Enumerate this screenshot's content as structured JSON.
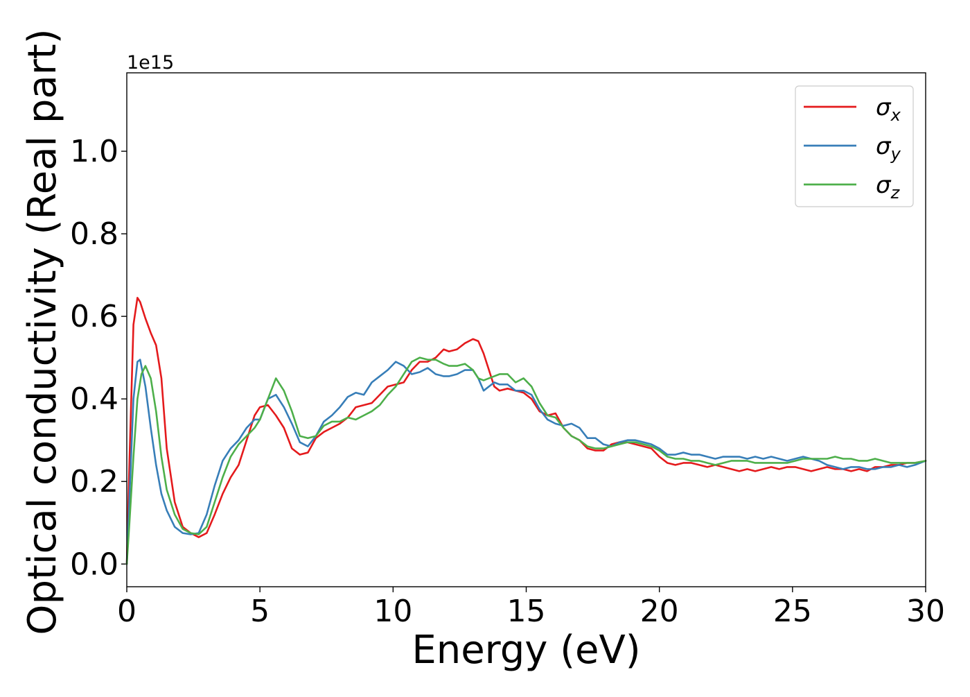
{
  "chart_data": {
    "type": "line",
    "xlabel": "Energy (eV)",
    "ylabel": "Optical conductivity (Real part)",
    "y_offset_label": "1e15",
    "xlim": [
      0,
      30
    ],
    "ylim": [
      -0.055,
      1.19
    ],
    "x_ticks": [
      0,
      5,
      10,
      15,
      20,
      25,
      30
    ],
    "y_ticks": [
      0.0,
      0.2,
      0.4,
      0.6,
      0.8,
      1.0
    ],
    "x_tick_labels": [
      "0",
      "5",
      "10",
      "15",
      "20",
      "25",
      "30"
    ],
    "y_tick_labels": [
      "0.0",
      "0.2",
      "0.4",
      "0.6",
      "0.8",
      "1.0"
    ],
    "grid": false,
    "legend_position": "top-right",
    "series": [
      {
        "name": "σ",
        "subscript": "x",
        "color": "#e41a1c",
        "x": [
          0,
          0.1,
          0.25,
          0.4,
          0.5,
          0.7,
          0.9,
          1.1,
          1.3,
          1.5,
          1.8,
          2.1,
          2.4,
          2.7,
          3.0,
          3.3,
          3.6,
          3.9,
          4.2,
          4.5,
          4.8,
          5.0,
          5.3,
          5.6,
          5.9,
          6.2,
          6.5,
          6.8,
          7.1,
          7.4,
          7.7,
          8.0,
          8.3,
          8.6,
          8.9,
          9.2,
          9.5,
          9.8,
          10.1,
          10.4,
          10.7,
          11.0,
          11.3,
          11.6,
          11.9,
          12.1,
          12.4,
          12.7,
          13.0,
          13.2,
          13.4,
          13.6,
          13.8,
          14.0,
          14.3,
          14.6,
          14.9,
          15.2,
          15.5,
          15.8,
          16.1,
          16.4,
          16.7,
          17.0,
          17.3,
          17.6,
          17.9,
          18.2,
          18.5,
          18.8,
          19.1,
          19.4,
          19.7,
          20.0,
          20.3,
          20.6,
          20.9,
          21.2,
          21.5,
          21.8,
          22.1,
          22.4,
          22.7,
          23.0,
          23.3,
          23.6,
          23.9,
          24.2,
          24.5,
          24.8,
          25.1,
          25.4,
          25.7,
          26.0,
          26.3,
          26.6,
          26.9,
          27.2,
          27.5,
          27.8,
          28.1,
          28.4,
          28.7,
          29.0,
          29.3,
          29.6,
          30.0
        ],
        "y": [
          0.0,
          0.25,
          0.58,
          0.645,
          0.635,
          0.595,
          0.56,
          0.53,
          0.45,
          0.28,
          0.15,
          0.09,
          0.075,
          0.065,
          0.075,
          0.12,
          0.17,
          0.21,
          0.24,
          0.3,
          0.36,
          0.38,
          0.385,
          0.36,
          0.33,
          0.28,
          0.265,
          0.27,
          0.305,
          0.32,
          0.33,
          0.34,
          0.355,
          0.38,
          0.385,
          0.39,
          0.41,
          0.43,
          0.435,
          0.44,
          0.47,
          0.49,
          0.49,
          0.5,
          0.52,
          0.515,
          0.52,
          0.535,
          0.545,
          0.54,
          0.51,
          0.47,
          0.43,
          0.42,
          0.425,
          0.42,
          0.415,
          0.4,
          0.37,
          0.36,
          0.365,
          0.33,
          0.31,
          0.3,
          0.28,
          0.275,
          0.275,
          0.29,
          0.295,
          0.295,
          0.29,
          0.285,
          0.28,
          0.26,
          0.245,
          0.24,
          0.245,
          0.245,
          0.24,
          0.235,
          0.24,
          0.235,
          0.23,
          0.225,
          0.23,
          0.225,
          0.23,
          0.235,
          0.23,
          0.235,
          0.235,
          0.23,
          0.225,
          0.23,
          0.235,
          0.23,
          0.23,
          0.225,
          0.23,
          0.225,
          0.235,
          0.235,
          0.24,
          0.24,
          0.245,
          0.245,
          0.25
        ]
      },
      {
        "name": "σ",
        "subscript": "y",
        "color": "#377eb8",
        "x": [
          0,
          0.1,
          0.25,
          0.4,
          0.5,
          0.7,
          0.9,
          1.1,
          1.3,
          1.5,
          1.8,
          2.1,
          2.4,
          2.7,
          3.0,
          3.3,
          3.6,
          3.9,
          4.2,
          4.5,
          4.8,
          5.0,
          5.3,
          5.6,
          5.9,
          6.2,
          6.5,
          6.8,
          7.1,
          7.4,
          7.7,
          8.0,
          8.3,
          8.6,
          8.9,
          9.2,
          9.5,
          9.8,
          10.1,
          10.4,
          10.7,
          11.0,
          11.3,
          11.6,
          11.9,
          12.1,
          12.4,
          12.7,
          13.0,
          13.2,
          13.4,
          13.6,
          13.8,
          14.0,
          14.3,
          14.6,
          14.9,
          15.2,
          15.5,
          15.8,
          16.1,
          16.4,
          16.7,
          17.0,
          17.3,
          17.6,
          17.9,
          18.2,
          18.5,
          18.8,
          19.1,
          19.4,
          19.7,
          20.0,
          20.3,
          20.6,
          20.9,
          21.2,
          21.5,
          21.8,
          22.1,
          22.4,
          22.7,
          23.0,
          23.3,
          23.6,
          23.9,
          24.2,
          24.5,
          24.8,
          25.1,
          25.4,
          25.7,
          26.0,
          26.3,
          26.6,
          26.9,
          27.2,
          27.5,
          27.8,
          28.1,
          28.4,
          28.7,
          29.0,
          29.3,
          29.6,
          30.0
        ],
        "y": [
          0.0,
          0.16,
          0.4,
          0.49,
          0.495,
          0.43,
          0.33,
          0.24,
          0.17,
          0.13,
          0.09,
          0.075,
          0.072,
          0.075,
          0.12,
          0.19,
          0.25,
          0.28,
          0.3,
          0.33,
          0.35,
          0.35,
          0.4,
          0.41,
          0.38,
          0.34,
          0.295,
          0.285,
          0.31,
          0.345,
          0.36,
          0.38,
          0.405,
          0.415,
          0.41,
          0.44,
          0.455,
          0.47,
          0.49,
          0.48,
          0.46,
          0.465,
          0.475,
          0.46,
          0.455,
          0.455,
          0.46,
          0.47,
          0.47,
          0.45,
          0.42,
          0.43,
          0.44,
          0.435,
          0.435,
          0.42,
          0.42,
          0.41,
          0.375,
          0.35,
          0.34,
          0.335,
          0.34,
          0.33,
          0.305,
          0.305,
          0.29,
          0.285,
          0.295,
          0.3,
          0.3,
          0.295,
          0.29,
          0.28,
          0.265,
          0.265,
          0.27,
          0.265,
          0.265,
          0.26,
          0.255,
          0.26,
          0.26,
          0.26,
          0.255,
          0.26,
          0.255,
          0.26,
          0.255,
          0.25,
          0.255,
          0.26,
          0.255,
          0.25,
          0.24,
          0.235,
          0.23,
          0.235,
          0.235,
          0.23,
          0.23,
          0.235,
          0.235,
          0.24,
          0.235,
          0.24,
          0.25
        ]
      },
      {
        "name": "σ",
        "subscript": "z",
        "color": "#4daf4a",
        "x": [
          0,
          0.1,
          0.25,
          0.4,
          0.55,
          0.7,
          0.9,
          1.1,
          1.3,
          1.5,
          1.8,
          2.1,
          2.4,
          2.7,
          3.0,
          3.3,
          3.6,
          3.9,
          4.2,
          4.5,
          4.8,
          5.0,
          5.3,
          5.6,
          5.9,
          6.2,
          6.5,
          6.8,
          7.1,
          7.4,
          7.7,
          8.0,
          8.3,
          8.6,
          8.9,
          9.2,
          9.5,
          9.8,
          10.1,
          10.4,
          10.7,
          11.0,
          11.3,
          11.6,
          11.9,
          12.1,
          12.4,
          12.7,
          13.0,
          13.2,
          13.4,
          13.6,
          13.8,
          14.0,
          14.3,
          14.6,
          14.9,
          15.2,
          15.5,
          15.8,
          16.1,
          16.4,
          16.7,
          17.0,
          17.3,
          17.6,
          17.9,
          18.2,
          18.5,
          18.8,
          19.1,
          19.4,
          19.7,
          20.0,
          20.3,
          20.6,
          20.9,
          21.2,
          21.5,
          21.8,
          22.1,
          22.4,
          22.7,
          23.0,
          23.3,
          23.6,
          23.9,
          24.2,
          24.5,
          24.8,
          25.1,
          25.4,
          25.7,
          26.0,
          26.3,
          26.6,
          26.9,
          27.2,
          27.5,
          27.8,
          28.1,
          28.4,
          28.7,
          29.0,
          29.3,
          29.6,
          30.0
        ],
        "y": [
          0.0,
          0.1,
          0.26,
          0.4,
          0.46,
          0.48,
          0.45,
          0.37,
          0.26,
          0.18,
          0.12,
          0.085,
          0.075,
          0.072,
          0.09,
          0.15,
          0.21,
          0.26,
          0.29,
          0.31,
          0.33,
          0.35,
          0.4,
          0.45,
          0.42,
          0.37,
          0.31,
          0.305,
          0.31,
          0.335,
          0.345,
          0.345,
          0.355,
          0.35,
          0.36,
          0.37,
          0.385,
          0.41,
          0.43,
          0.46,
          0.49,
          0.5,
          0.495,
          0.495,
          0.485,
          0.48,
          0.48,
          0.485,
          0.47,
          0.45,
          0.445,
          0.45,
          0.455,
          0.46,
          0.46,
          0.44,
          0.45,
          0.43,
          0.39,
          0.36,
          0.355,
          0.33,
          0.31,
          0.3,
          0.285,
          0.28,
          0.28,
          0.285,
          0.29,
          0.295,
          0.295,
          0.29,
          0.285,
          0.275,
          0.26,
          0.255,
          0.255,
          0.25,
          0.25,
          0.245,
          0.24,
          0.245,
          0.25,
          0.25,
          0.25,
          0.245,
          0.245,
          0.245,
          0.245,
          0.245,
          0.25,
          0.255,
          0.255,
          0.255,
          0.255,
          0.26,
          0.255,
          0.255,
          0.25,
          0.25,
          0.255,
          0.25,
          0.245,
          0.245,
          0.245,
          0.245,
          0.25
        ]
      }
    ]
  }
}
